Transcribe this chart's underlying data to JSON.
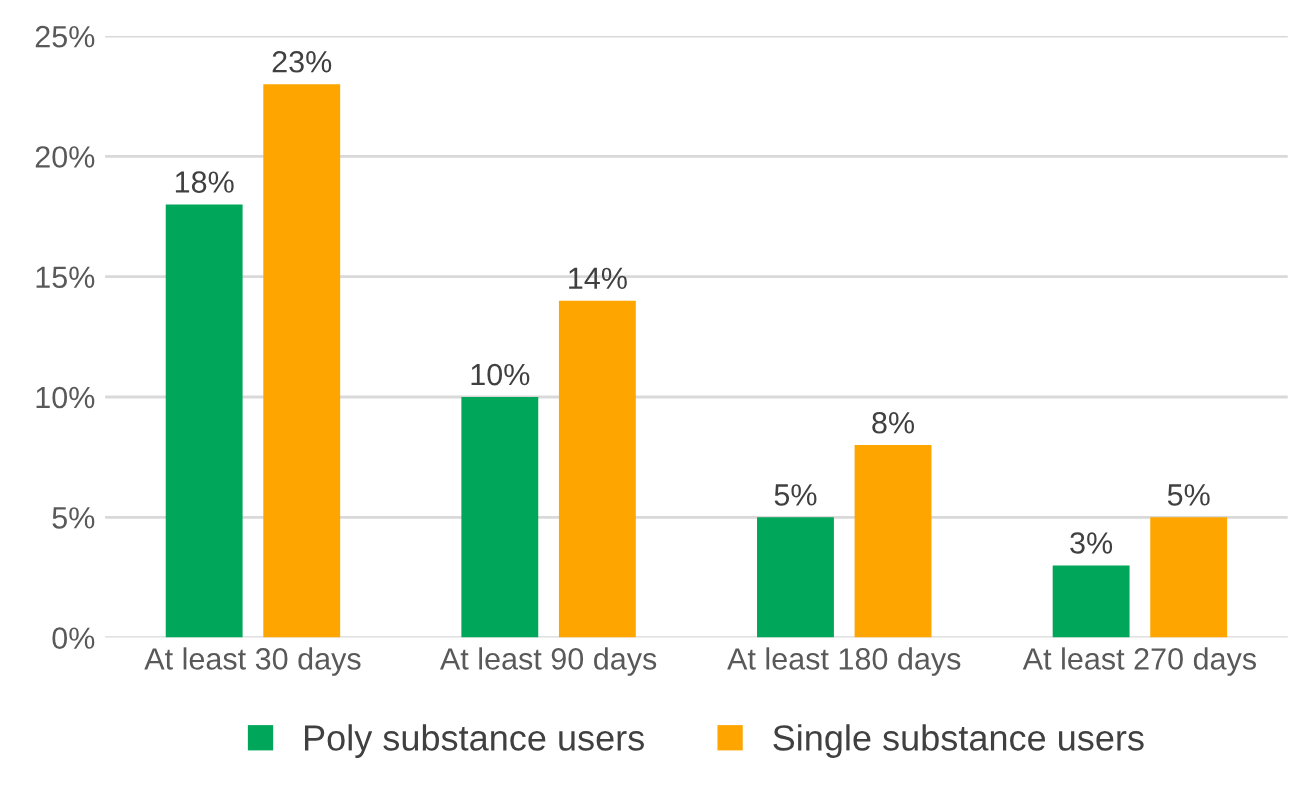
{
  "chart_data": {
    "type": "bar",
    "categories": [
      "At least 30 days",
      "At least 90 days",
      "At least 180 days",
      "At least 270 days"
    ],
    "series": [
      {
        "name": "Poly substance users",
        "color": "#00a65a",
        "values": [
          18,
          10,
          5,
          3
        ],
        "value_labels": [
          "18%",
          "10%",
          "5%",
          "3%"
        ]
      },
      {
        "name": "Single substance users",
        "color": "#ffa500",
        "values": [
          23,
          14,
          8,
          5
        ],
        "value_labels": [
          "23%",
          "14%",
          "8%",
          "5%"
        ]
      }
    ],
    "ylim": [
      0,
      25
    ],
    "yticks": [
      {
        "value": 0,
        "label": "0%"
      },
      {
        "value": 5,
        "label": "5%"
      },
      {
        "value": 10,
        "label": "10%"
      },
      {
        "value": 15,
        "label": "15%"
      },
      {
        "value": 20,
        "label": "20%"
      },
      {
        "value": 25,
        "label": "25%"
      }
    ],
    "grid": "y",
    "legend": "bottom"
  }
}
